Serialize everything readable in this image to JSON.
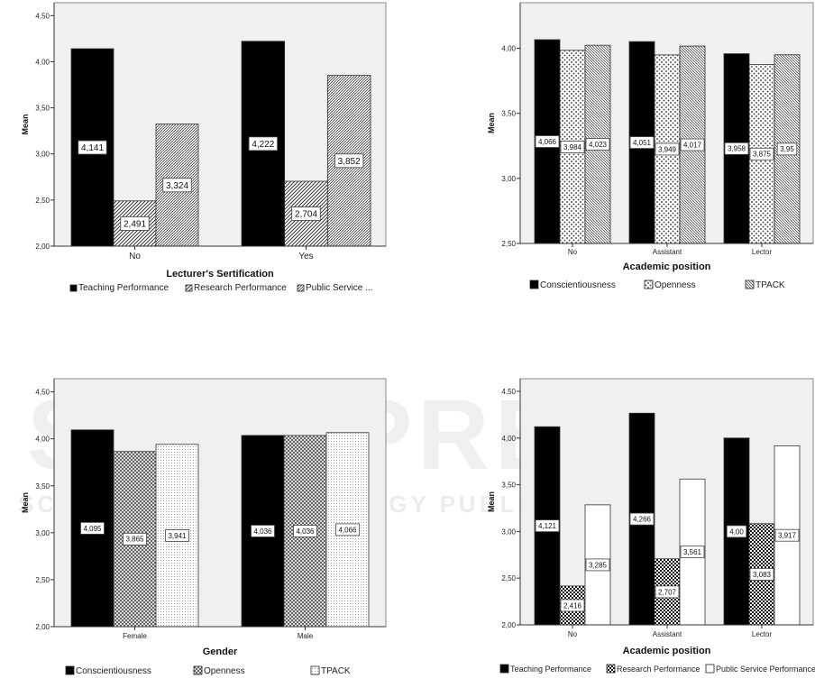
{
  "watermark": {
    "line1": "SCITEPRESS",
    "line2": "SCIENCE AND TECHNOLOGY PUBLICATIONS"
  },
  "chart_data": [
    {
      "type": "bar",
      "title": "",
      "xlabel": "Lecturer's Sertification",
      "ylabel": "Mean",
      "ylim": [
        2.0,
        4.64
      ],
      "yticks": [
        "2,00",
        "2,50",
        "3,00",
        "3,50",
        "4,00",
        "4,50"
      ],
      "categories": [
        "No",
        "Yes"
      ],
      "series": [
        {
          "name": "Teaching Performance",
          "values": [
            4.141,
            4.222
          ],
          "labels": [
            "4,141",
            "4,222"
          ]
        },
        {
          "name": "Research Performance",
          "values": [
            2.491,
            2.704
          ],
          "labels": [
            "2,491",
            "2,704"
          ]
        },
        {
          "name": "Public Service ...",
          "values": [
            3.324,
            3.852
          ],
          "labels": [
            "3,324",
            "3,852"
          ]
        }
      ],
      "legend": "bottom",
      "grid": false
    },
    {
      "type": "bar",
      "title": "",
      "xlabel": "Academic position",
      "ylabel": "Mean",
      "ylim": [
        2.5,
        4.35
      ],
      "yticks": [
        "2,50",
        "3,00",
        "3,50",
        "4,00"
      ],
      "categories": [
        "No",
        "Assistant",
        "Lector"
      ],
      "series": [
        {
          "name": "Conscientiousness",
          "values": [
            4.066,
            4.051,
            3.958
          ],
          "labels": [
            "4,066",
            "4,051",
            "3,958"
          ]
        },
        {
          "name": "Openness",
          "values": [
            3.984,
            3.949,
            3.875
          ],
          "labels": [
            "3,984",
            "3,949",
            "3,875"
          ]
        },
        {
          "name": "TPACK",
          "values": [
            4.023,
            4.017,
            3.95
          ],
          "labels": [
            "4,023",
            "4,017",
            "3,95"
          ]
        }
      ],
      "legend": "bottom",
      "grid": false
    },
    {
      "type": "bar",
      "title": "",
      "xlabel": "Gender",
      "ylabel": "Mean",
      "ylim": [
        2.0,
        4.64
      ],
      "yticks": [
        "2,00",
        "2,50",
        "3,00",
        "3,50",
        "4,00",
        "4,50"
      ],
      "categories": [
        "Female",
        "Male"
      ],
      "series": [
        {
          "name": "Conscientiousness",
          "values": [
            4.095,
            4.036
          ],
          "labels": [
            "4,095",
            "4,036"
          ]
        },
        {
          "name": "Openness",
          "values": [
            3.865,
            4.036
          ],
          "labels": [
            "3,865",
            "4,036"
          ]
        },
        {
          "name": "TPACK",
          "values": [
            3.941,
            4.066
          ],
          "labels": [
            "3,941",
            "4,066"
          ]
        }
      ],
      "legend": "bottom",
      "grid": false
    },
    {
      "type": "bar",
      "title": "",
      "xlabel": "Academic position",
      "ylabel": "Mean",
      "ylim": [
        2.0,
        4.635
      ],
      "yticks": [
        "2,00",
        "2,50",
        "3,00",
        "3,50",
        "4,00",
        "4,50"
      ],
      "categories": [
        "No",
        "Assistant",
        "Lector"
      ],
      "series": [
        {
          "name": "Teaching Performance",
          "values": [
            4.121,
            4.266,
            4.0
          ],
          "labels": [
            "4,121",
            "4,266",
            "4,00"
          ]
        },
        {
          "name": "Research Performance",
          "values": [
            2.416,
            2.707,
            3.083
          ],
          "labels": [
            "2,416",
            "2,707",
            "3,083"
          ]
        },
        {
          "name": "Public Service Performance",
          "values": [
            3.285,
            3.561,
            3.917
          ],
          "labels": [
            "3,285",
            "3,561",
            "3,917"
          ]
        }
      ],
      "legend": "bottom",
      "grid": false
    }
  ]
}
